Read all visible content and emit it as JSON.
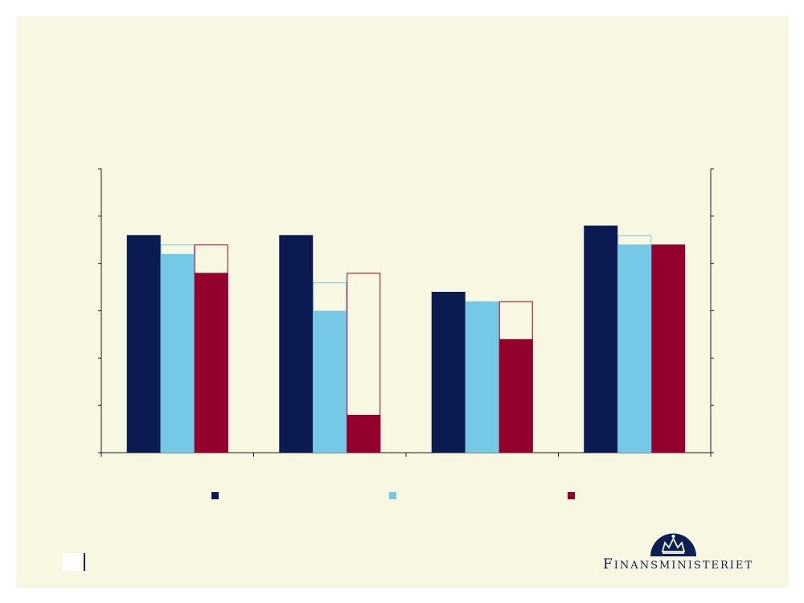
{
  "colors": {
    "background": "#f8f7e1",
    "navy": "#0b1a50",
    "lightblue": "#75c8e6",
    "crimson": "#93002d",
    "axis": "#1a1a1a"
  },
  "logo": {
    "initial": "F",
    "rest": "INANSMINISTERIET",
    "icon": "crown-icon"
  },
  "chart_data": {
    "type": "bar",
    "categories": [
      "",
      "",
      "",
      ""
    ],
    "ylim": [
      0,
      6
    ],
    "grid": false,
    "legend": "bottom",
    "series": [
      {
        "color": "#0b1a50",
        "values": [
          4.6,
          4.6,
          3.4,
          4.8
        ]
      },
      {
        "color": "#75c8e6",
        "values": [
          4.2,
          3.0,
          3.2,
          4.4
        ],
        "outline_top": [
          4.4,
          3.6,
          3.2,
          4.6
        ]
      },
      {
        "color": "#93002d",
        "values": [
          3.8,
          0.8,
          2.4,
          4.4
        ],
        "outline_top": [
          4.4,
          3.8,
          3.2,
          4.4
        ]
      }
    ]
  }
}
